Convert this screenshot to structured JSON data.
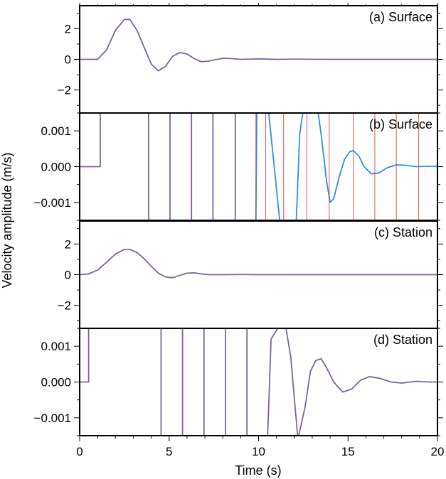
{
  "chart_data": [
    {
      "type": "line",
      "panel_label": "(a) Surface",
      "xlim": [
        0,
        20
      ],
      "ylim": [
        -3.5,
        3.5
      ],
      "yticks": [
        -2,
        0,
        2
      ],
      "ytick_labels": [
        "−2",
        "0",
        "2"
      ],
      "series": [
        {
          "color": "#2b8fe8",
          "x": [
            0,
            1,
            1.5,
            2,
            2.5,
            2.8,
            3.2,
            3.6,
            4.0,
            4.4,
            4.8,
            5.2,
            5.6,
            6.0,
            6.4,
            6.8,
            7.2,
            7.6,
            8.0,
            8.4,
            9.0,
            10.0,
            11.0,
            12.0,
            14.0,
            16.0,
            18.0,
            20.0
          ],
          "y": [
            0,
            0,
            0.6,
            1.9,
            2.6,
            2.6,
            1.9,
            0.8,
            -0.3,
            -0.75,
            -0.45,
            0.2,
            0.45,
            0.35,
            0.05,
            -0.15,
            -0.12,
            -0.02,
            0.07,
            0.06,
            0.0,
            0.03,
            0.0,
            0.01,
            0.0,
            0.0,
            0.0,
            0.0
          ]
        },
        {
          "color": "#d83a3a",
          "x": [
            0,
            1,
            1.5,
            2,
            2.5,
            2.8,
            3.2,
            3.6,
            4.0,
            4.4,
            4.8,
            5.2,
            5.6,
            6.0,
            6.4,
            6.8,
            7.2,
            7.6,
            8.0,
            8.4,
            9.0,
            10.0,
            11.0,
            12.0,
            14.0,
            16.0,
            18.0,
            20.0
          ],
          "y": [
            0,
            0,
            0.6,
            1.9,
            2.6,
            2.6,
            1.9,
            0.8,
            -0.3,
            -0.75,
            -0.45,
            0.2,
            0.45,
            0.35,
            0.05,
            -0.15,
            -0.12,
            -0.02,
            0.07,
            0.06,
            0.0,
            0.03,
            0.0,
            0.01,
            0.0,
            0.0,
            0.0,
            0.0
          ]
        }
      ]
    },
    {
      "type": "line",
      "panel_label": "(b) Surface",
      "xlim": [
        0,
        20
      ],
      "ylim": [
        -0.0015,
        0.0015
      ],
      "yticks": [
        -0.001,
        0.0,
        0.001
      ],
      "ytick_labels": [
        "−0.001",
        "0.000",
        "0.001"
      ],
      "series": [
        {
          "color": "#2b8fe8",
          "x": [
            0,
            1.15,
            1.15,
            3.85,
            3.85,
            5.05,
            5.05,
            6.25,
            6.25,
            7.45,
            7.45,
            8.7,
            8.7,
            9.85,
            9.9,
            10.3,
            10.55,
            11.2,
            11.35,
            12.1,
            12.3,
            12.5,
            12.8,
            13.1,
            13.3,
            13.5,
            13.8,
            14.0,
            14.2,
            14.5,
            14.8,
            15.1,
            15.3,
            15.6,
            15.9,
            16.3,
            16.7,
            17.2,
            17.7,
            18.2,
            18.8,
            19.4,
            20.0
          ],
          "y": [
            0,
            0,
            0.0016,
            0.0016,
            -0.0016,
            -0.0016,
            0.0016,
            0.0016,
            -0.0016,
            -0.0016,
            0.0016,
            0.0016,
            -0.0016,
            -0.0016,
            0.0016,
            0.0016,
            0.0016,
            -0.0016,
            -0.0016,
            -0.0016,
            0.0009,
            0.0016,
            0.0016,
            0.0016,
            0.0016,
            0.0009,
            -0.0004,
            -0.001,
            -0.0009,
            -0.0003,
            0.0002,
            0.00042,
            0.00045,
            0.0003,
            0.0,
            -0.0002,
            -0.00018,
            -3e-05,
            5e-05,
            4e-05,
            0.0,
            1e-05,
            1e-05
          ]
        },
        {
          "color": "#d83a3a",
          "x": [
            0,
            1.15,
            1.15,
            3.85,
            3.85,
            5.05,
            5.05,
            6.25,
            6.25,
            7.45,
            7.45,
            8.7,
            8.7,
            9.85,
            9.85,
            10.4,
            10.4,
            11.4,
            11.4,
            12.7,
            12.7,
            13.95,
            13.95,
            15.3,
            15.3,
            16.5,
            16.5,
            17.7,
            17.7,
            18.95,
            18.95,
            20.0
          ],
          "y": [
            0,
            0,
            0.0016,
            0.0016,
            -0.0016,
            -0.0016,
            0.0016,
            0.0016,
            -0.0016,
            -0.0016,
            0.0016,
            0.0016,
            -0.0016,
            -0.0016,
            0.0016,
            0.0016,
            -0.0016,
            -0.0016,
            0.0016,
            0.0016,
            -0.0016,
            -0.0016,
            0.0016,
            0.0016,
            -0.0016,
            -0.0016,
            0.0016,
            0.0016,
            -0.0016,
            -0.0016,
            0.0016,
            0.0016
          ]
        }
      ]
    },
    {
      "type": "line",
      "panel_label": "(c) Station",
      "xlim": [
        0,
        20
      ],
      "ylim": [
        -3.5,
        3.5
      ],
      "yticks": [
        -2,
        0,
        2
      ],
      "ytick_labels": [
        "−2",
        "0",
        "2"
      ],
      "series": [
        {
          "color": "#2b8fe8",
          "x": [
            0,
            0.5,
            1,
            1.5,
            2,
            2.5,
            2.8,
            3.2,
            3.6,
            4.0,
            4.4,
            4.8,
            5.2,
            5.6,
            6.0,
            6.4,
            6.8,
            7.2,
            8.0,
            9.0,
            10.0,
            12.0,
            14.0,
            16.0,
            18.0,
            20.0
          ],
          "y": [
            0,
            0.05,
            0.3,
            0.8,
            1.35,
            1.65,
            1.65,
            1.45,
            1.05,
            0.55,
            0.1,
            -0.15,
            -0.2,
            -0.05,
            0.1,
            0.12,
            0.05,
            0.0,
            0.0,
            0.01,
            0.0,
            0.0,
            0.0,
            0.0,
            0.0,
            0.0
          ]
        },
        {
          "color": "#d83a3a",
          "x": [
            0,
            0.5,
            1,
            1.5,
            2,
            2.5,
            2.8,
            3.2,
            3.6,
            4.0,
            4.4,
            4.8,
            5.2,
            5.6,
            6.0,
            6.4,
            6.8,
            7.2,
            8.0,
            9.0,
            10.0,
            12.0,
            14.0,
            16.0,
            18.0,
            20.0
          ],
          "y": [
            0,
            0.05,
            0.3,
            0.8,
            1.35,
            1.65,
            1.65,
            1.45,
            1.05,
            0.55,
            0.1,
            -0.15,
            -0.2,
            -0.05,
            0.1,
            0.12,
            0.05,
            0.0,
            0.0,
            0.01,
            0.0,
            0.0,
            0.0,
            0.0,
            0.0,
            0.0
          ]
        }
      ]
    },
    {
      "type": "line",
      "panel_label": "(d) Station",
      "xlim": [
        0,
        20
      ],
      "ylim": [
        -0.0015,
        0.0015
      ],
      "yticks": [
        -0.001,
        0.0,
        0.001
      ],
      "ytick_labels": [
        "−0.001",
        "0.000",
        "0.001"
      ],
      "series": [
        {
          "color": "#2b8fe8",
          "x": [
            0,
            0.5,
            0.5,
            4.55,
            4.55,
            5.75,
            5.75,
            6.95,
            6.95,
            8.15,
            8.15,
            9.35,
            9.35,
            10.5,
            10.7,
            11.2,
            11.5,
            11.8,
            12.2,
            12.6,
            12.9,
            13.2,
            13.5,
            13.8,
            14.2,
            14.7,
            15.2,
            15.7,
            16.2,
            16.8,
            17.4,
            18.0,
            18.8,
            19.5,
            20.0
          ],
          "y": [
            0,
            0,
            0.0016,
            0.0016,
            -0.0016,
            -0.0016,
            0.0016,
            0.0016,
            -0.0016,
            -0.0016,
            0.0016,
            0.0016,
            -0.0016,
            -0.0016,
            0.0012,
            0.0016,
            0.0016,
            0.0007,
            -0.0016,
            -0.0007,
            0.0003,
            0.0006,
            0.00065,
            0.0004,
            0.0,
            -0.00028,
            -0.0002,
            5e-05,
            0.00015,
            0.0001,
            0.0,
            -3e-05,
            2e-05,
            0.0,
            0.0
          ]
        },
        {
          "color": "#d83a3a",
          "x": [
            0,
            0.5,
            0.5,
            4.55,
            4.55,
            5.75,
            5.75,
            6.95,
            6.95,
            8.15,
            8.15,
            9.35,
            9.35,
            10.5,
            10.7,
            11.2,
            11.5,
            11.8,
            12.2,
            12.6,
            12.9,
            13.2,
            13.5,
            13.8,
            14.2,
            14.7,
            15.2,
            15.7,
            16.2,
            16.8,
            17.4,
            18.0,
            18.8,
            19.5,
            20.0
          ],
          "y": [
            0,
            0,
            0.0016,
            0.0016,
            -0.0016,
            -0.0016,
            0.0016,
            0.0016,
            -0.0016,
            -0.0016,
            0.0016,
            0.0016,
            -0.0016,
            -0.0016,
            0.0012,
            0.0016,
            0.0016,
            0.0007,
            -0.0016,
            -0.0007,
            0.0003,
            0.0006,
            0.00065,
            0.0004,
            0.0,
            -0.00028,
            -0.0002,
            5e-05,
            0.00015,
            0.0001,
            0.0,
            -3e-05,
            2e-05,
            0.0,
            0.0
          ]
        }
      ]
    }
  ],
  "axes": {
    "xlabel": "Time (s)",
    "ylabel": "Velocity amplitude (m/s)",
    "xticks": [
      0,
      5,
      10,
      15,
      20
    ],
    "xtick_labels": [
      "0",
      "5",
      "10",
      "15",
      "20"
    ]
  }
}
